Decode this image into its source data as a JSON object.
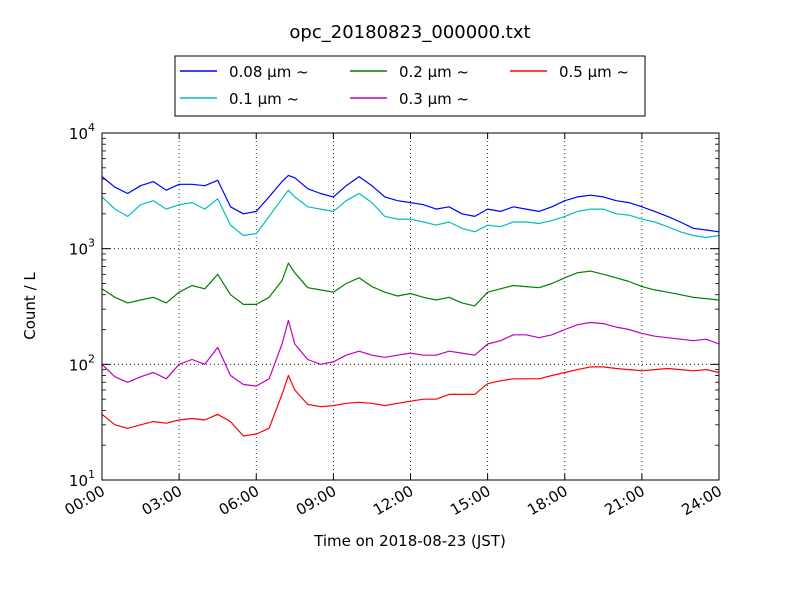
{
  "chart_data": {
    "type": "line",
    "title": "opc_20180823_000000.txt",
    "xlabel": "Time on 2018-08-23 (JST)",
    "ylabel": "Count / L",
    "x_unit": "hours",
    "xlim": [
      0,
      24
    ],
    "ylim": [
      10,
      10000
    ],
    "yscale": "log",
    "grid": true,
    "legend_position": "top-center, above plot",
    "x_ticks": [
      {
        "value": 0,
        "label": "00:00"
      },
      {
        "value": 3,
        "label": "03:00"
      },
      {
        "value": 6,
        "label": "06:00"
      },
      {
        "value": 9,
        "label": "09:00"
      },
      {
        "value": 12,
        "label": "12:00"
      },
      {
        "value": 15,
        "label": "15:00"
      },
      {
        "value": 18,
        "label": "18:00"
      },
      {
        "value": 21,
        "label": "21:00"
      },
      {
        "value": 24,
        "label": "24:00"
      }
    ],
    "y_ticks": [
      {
        "value": 10,
        "base": "10",
        "exp": "1"
      },
      {
        "value": 100,
        "base": "10",
        "exp": "2"
      },
      {
        "value": 1000,
        "base": "10",
        "exp": "3"
      },
      {
        "value": 10000,
        "base": "10",
        "exp": "4"
      }
    ],
    "x": [
      0,
      0.5,
      1,
      1.5,
      2,
      2.5,
      3,
      3.5,
      4,
      4.5,
      5,
      5.5,
      6,
      6.5,
      7,
      7.25,
      7.5,
      8,
      8.5,
      9,
      9.5,
      10,
      10.5,
      11,
      11.5,
      12,
      12.5,
      13,
      13.5,
      14,
      14.5,
      15,
      15.5,
      16,
      16.5,
      17,
      17.5,
      18,
      18.5,
      19,
      19.5,
      20,
      20.5,
      21,
      21.5,
      22,
      22.5,
      23,
      23.5,
      24
    ],
    "series": [
      {
        "name": "0.08 μm ~",
        "color": "#0000ff",
        "values": [
          4200,
          3400,
          3000,
          3500,
          3800,
          3200,
          3600,
          3600,
          3500,
          3900,
          2300,
          2000,
          2100,
          2800,
          3800,
          4300,
          4100,
          3300,
          3000,
          2800,
          3500,
          4200,
          3500,
          2800,
          2600,
          2500,
          2400,
          2200,
          2300,
          2000,
          1900,
          2200,
          2100,
          2300,
          2200,
          2100,
          2300,
          2600,
          2800,
          2900,
          2800,
          2600,
          2500,
          2300,
          2100,
          1900,
          1700,
          1500,
          1450,
          1400
        ]
      },
      {
        "name": "0.1 μm ~",
        "color": "#00bfbf",
        "values": [
          2800,
          2200,
          1900,
          2400,
          2600,
          2200,
          2400,
          2500,
          2200,
          2700,
          1600,
          1300,
          1350,
          1900,
          2700,
          3200,
          2800,
          2300,
          2200,
          2100,
          2600,
          3000,
          2500,
          1900,
          1800,
          1800,
          1700,
          1600,
          1700,
          1500,
          1400,
          1600,
          1550,
          1700,
          1700,
          1650,
          1750,
          1900,
          2100,
          2200,
          2200,
          2000,
          1950,
          1800,
          1700,
          1550,
          1400,
          1300,
          1250,
          1300
        ]
      },
      {
        "name": "0.2 μm ~",
        "color": "#008000",
        "values": [
          450,
          380,
          340,
          360,
          380,
          340,
          420,
          480,
          450,
          600,
          400,
          330,
          330,
          380,
          530,
          750,
          620,
          460,
          440,
          420,
          500,
          560,
          470,
          420,
          390,
          410,
          380,
          360,
          380,
          340,
          320,
          420,
          450,
          480,
          470,
          460,
          500,
          560,
          620,
          640,
          600,
          560,
          520,
          470,
          440,
          420,
          400,
          380,
          370,
          360
        ]
      },
      {
        "name": "0.3 μm ~",
        "color": "#bf00bf",
        "values": [
          100,
          78,
          70,
          78,
          85,
          75,
          100,
          110,
          100,
          140,
          80,
          67,
          65,
          75,
          150,
          240,
          150,
          110,
          100,
          105,
          120,
          130,
          120,
          115,
          120,
          125,
          120,
          120,
          130,
          125,
          120,
          150,
          160,
          180,
          180,
          170,
          180,
          200,
          220,
          230,
          225,
          210,
          200,
          185,
          175,
          170,
          165,
          160,
          165,
          150
        ]
      },
      {
        "name": "0.5 μm ~",
        "color": "#ff0000",
        "values": [
          37,
          30,
          28,
          30,
          32,
          31,
          33,
          34,
          33,
          37,
          32,
          24,
          25,
          28,
          55,
          80,
          60,
          45,
          43,
          44,
          46,
          47,
          46,
          44,
          46,
          48,
          50,
          50,
          55,
          55,
          55,
          68,
          72,
          75,
          75,
          75,
          80,
          85,
          90,
          95,
          95,
          92,
          90,
          88,
          90,
          92,
          90,
          88,
          90,
          85
        ]
      }
    ]
  }
}
